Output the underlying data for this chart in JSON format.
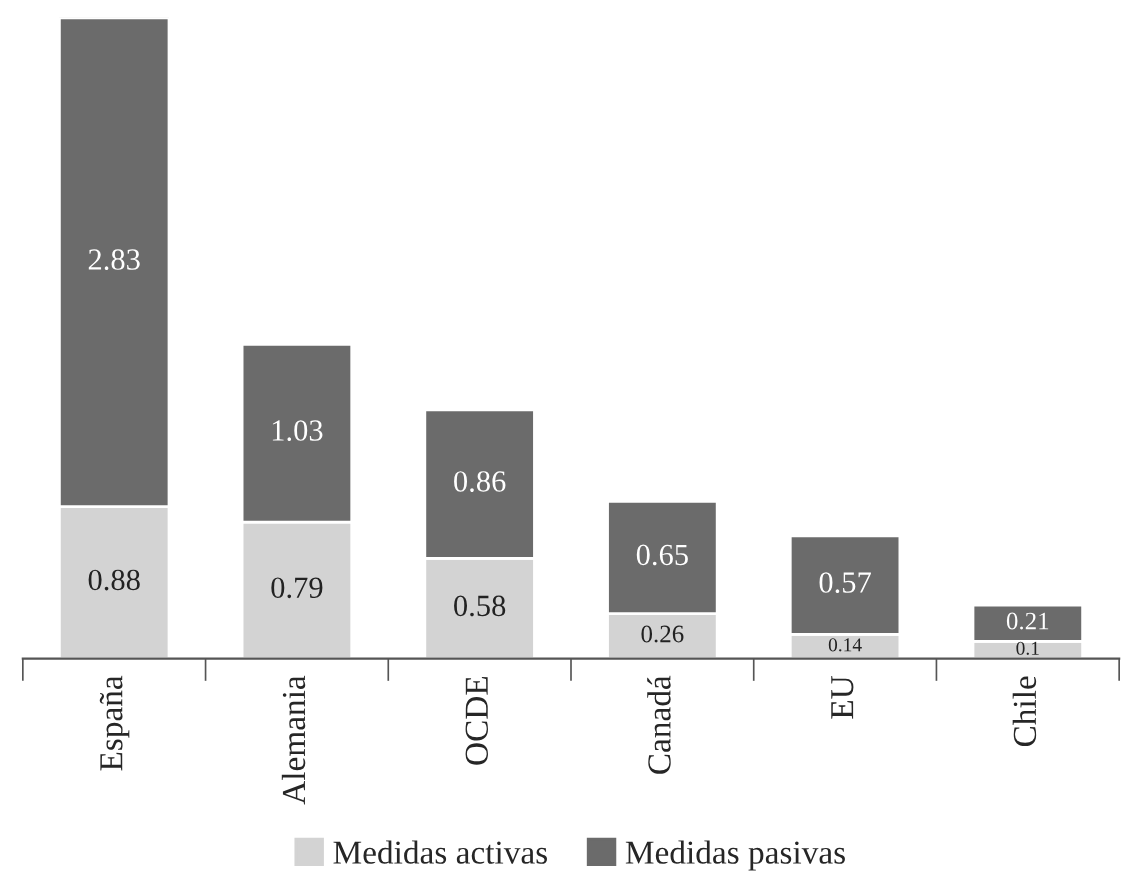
{
  "chart_data": {
    "type": "bar",
    "stacked": true,
    "data_labels": true,
    "legend": "bottom",
    "categories": [
      "España",
      "Alemania",
      "OCDE",
      "Canadá",
      "EU",
      "Chile"
    ],
    "series": [
      {
        "name": "Medidas activas",
        "color": "#d3d3d3",
        "values": [
          0.88,
          0.79,
          0.58,
          0.26,
          0.14,
          0.1
        ]
      },
      {
        "name": "Medidas pasivas",
        "color": "#6b6b6b",
        "values": [
          2.83,
          1.03,
          0.86,
          0.65,
          0.57,
          0.21
        ]
      }
    ]
  }
}
